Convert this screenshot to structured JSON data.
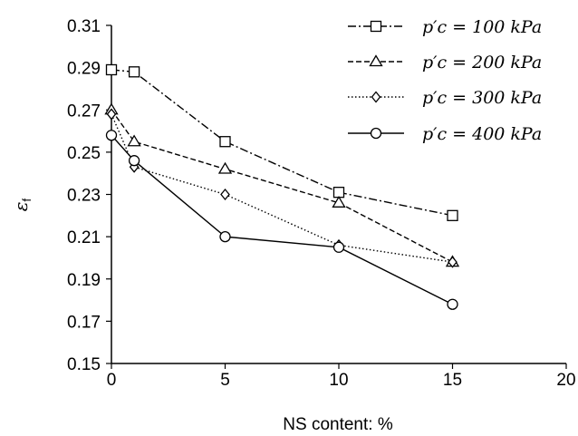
{
  "chart_data": {
    "type": "line",
    "xlabel": "NS content: %",
    "ylabel": "ε_f",
    "xlim": [
      0,
      20
    ],
    "ylim": [
      0.15,
      0.31
    ],
    "x_ticks": [
      "0",
      "5",
      "10",
      "15",
      "20"
    ],
    "y_ticks": [
      "0.15",
      "0.17",
      "0.19",
      "0.21",
      "0.23",
      "0.25",
      "0.27",
      "0.29",
      "0.31"
    ],
    "grid": false,
    "legend_position": "top-right",
    "series": [
      {
        "name": "p′c = 100 kPa",
        "marker": "square",
        "dash": "dashdot",
        "color": "#000000",
        "x": [
          0,
          1,
          5,
          10,
          15
        ],
        "y": [
          0.289,
          0.288,
          0.255,
          0.231,
          0.22
        ]
      },
      {
        "name": "p′c = 200 kPa",
        "marker": "triangle",
        "dash": "dashed",
        "color": "#000000",
        "x": [
          0,
          1,
          5,
          10,
          15
        ],
        "y": [
          0.27,
          0.255,
          0.242,
          0.226,
          0.198
        ]
      },
      {
        "name": "p′c = 300 kPa",
        "marker": "diamond",
        "dash": "dotted",
        "color": "#000000",
        "x": [
          0,
          1,
          5,
          10,
          15
        ],
        "y": [
          0.268,
          0.243,
          0.23,
          0.206,
          0.198
        ]
      },
      {
        "name": "p′c = 400 kPa",
        "marker": "circle",
        "dash": "solid",
        "color": "#000000",
        "x": [
          0,
          1,
          5,
          10,
          15
        ],
        "y": [
          0.258,
          0.246,
          0.21,
          0.205,
          0.178
        ]
      }
    ]
  }
}
